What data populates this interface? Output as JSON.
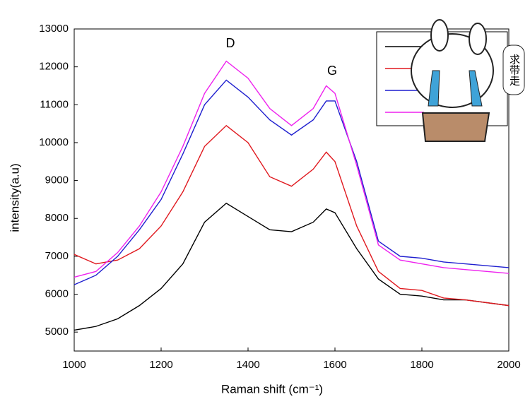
{
  "chart_data": {
    "type": "line",
    "x_label": "Raman shift (cm⁻¹)",
    "y_label": "intensity(a.u)",
    "annotations": [
      "D",
      "G"
    ],
    "sticker_text": "求带走",
    "x": [
      1000,
      1050,
      1100,
      1150,
      1200,
      1250,
      1300,
      1350,
      1400,
      1450,
      1500,
      1550,
      1580,
      1600,
      1650,
      1700,
      1750,
      1800,
      1850,
      1900,
      2000
    ],
    "series": [
      {
        "color": "#000000",
        "values": [
          5050,
          5150,
          5350,
          5700,
          6150,
          6800,
          7900,
          8400,
          8050,
          7700,
          7650,
          7900,
          8250,
          8150,
          7200,
          6400,
          6000,
          5950,
          5850,
          5850,
          5700
        ]
      },
      {
        "color": "#e0191f",
        "values": [
          7050,
          6800,
          6900,
          7200,
          7800,
          8700,
          9900,
          10450,
          10000,
          9100,
          8850,
          9300,
          9750,
          9500,
          7800,
          6600,
          6150,
          6100,
          5900,
          5850,
          5700
        ]
      },
      {
        "color": "#1f1fcf",
        "values": [
          6250,
          6500,
          7000,
          7700,
          8500,
          9700,
          11000,
          11650,
          11200,
          10600,
          10200,
          10600,
          11100,
          11100,
          9500,
          7400,
          7000,
          6950,
          6850,
          6800,
          6700
        ]
      },
      {
        "color": "#ee22ee",
        "values": [
          6450,
          6600,
          7100,
          7800,
          8700,
          9900,
          11300,
          12150,
          11700,
          10900,
          10450,
          10900,
          11500,
          11300,
          9400,
          7300,
          6900,
          6800,
          6700,
          6650,
          6550
        ]
      }
    ],
    "xlim": [
      1000,
      2000
    ],
    "xticks": [
      1000,
      1200,
      1400,
      1600,
      1800,
      2000
    ],
    "ylim": [
      4500,
      13000
    ],
    "yticks": [
      5000,
      6000,
      7000,
      8000,
      9000,
      10000,
      11000,
      12000,
      13000
    ]
  }
}
